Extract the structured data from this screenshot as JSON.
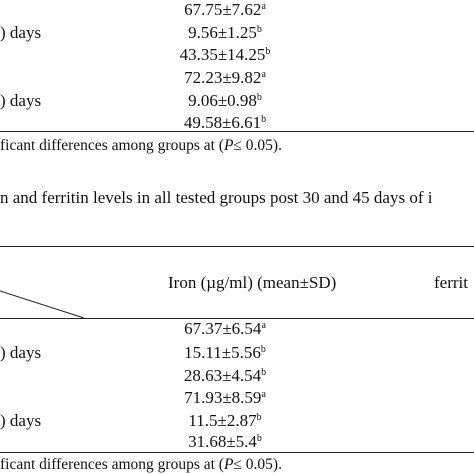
{
  "table_top": {
    "row_labels": [
      {
        "text": ") days",
        "row": 1
      },
      {
        "text": ") days",
        "row": 4
      }
    ],
    "values": [
      {
        "value": "67.75±7.62",
        "sup": "a"
      },
      {
        "value": "9.56±1.25",
        "sup": "b"
      },
      {
        "value": "43.35±14.25",
        "sup": "b"
      },
      {
        "value": "72.23±9.82",
        "sup": "a"
      },
      {
        "value": "9.06±0.98",
        "sup": "b"
      },
      {
        "value": "49.58±6.61",
        "sup": "b"
      }
    ],
    "footnote_pre": "ficant differences among groups at (",
    "footnote_p": "P",
    "footnote_post": "≤ 0.05)."
  },
  "caption": "n and ferritin levels in all tested groups post 30 and 45 days of i",
  "table_bottom": {
    "header_iron": "Iron (µg/ml) (mean±SD)",
    "header_ferritin": "ferrit",
    "row_labels": [
      {
        "text": ") days",
        "row": 1
      },
      {
        "text": ") days",
        "row": 4
      }
    ],
    "values": [
      {
        "value": "67.37±6.54",
        "sup": "a"
      },
      {
        "value": "15.11±5.56",
        "sup": "b"
      },
      {
        "value": "28.63±4.54",
        "sup": "b"
      },
      {
        "value": "71.93±8.59",
        "sup": "a"
      },
      {
        "value": "11.5±2.87",
        "sup": "b"
      },
      {
        "value": "31.68±5.4",
        "sup": "b"
      }
    ],
    "footnote_pre": "ficant differences among groups at (",
    "footnote_p": "P",
    "footnote_post": "≤ 0.05)."
  }
}
